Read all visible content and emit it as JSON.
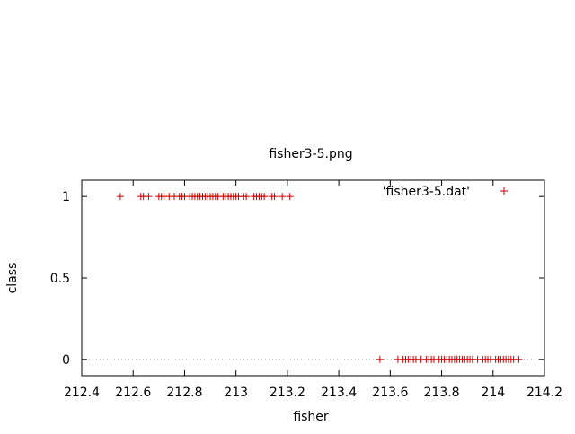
{
  "chart_data": {
    "type": "scatter",
    "title": "fisher3-5.png",
    "xlabel": "fisher",
    "ylabel": "class",
    "xlim": [
      212.4,
      214.2
    ],
    "ylim": [
      -0.1,
      1.1
    ],
    "x_ticks": [
      "212.4",
      "212.6",
      "212.8",
      "213",
      "213.2",
      "213.4",
      "213.6",
      "213.8",
      "214",
      "214.2"
    ],
    "y_ticks": [
      "0",
      "0.5",
      "1"
    ],
    "grid": "dotted zero line",
    "legend_position": "top-right",
    "series": [
      {
        "name": "'fisher3-5.dat'",
        "color": "#cc0000",
        "marker": "plus",
        "points": [
          [
            212.55,
            1
          ],
          [
            212.63,
            1
          ],
          [
            212.64,
            1
          ],
          [
            212.66,
            1
          ],
          [
            212.7,
            1
          ],
          [
            212.71,
            1
          ],
          [
            212.72,
            1
          ],
          [
            212.74,
            1
          ],
          [
            212.76,
            1
          ],
          [
            212.78,
            1
          ],
          [
            212.79,
            1
          ],
          [
            212.8,
            1
          ],
          [
            212.82,
            1
          ],
          [
            212.83,
            1
          ],
          [
            212.84,
            1
          ],
          [
            212.85,
            1
          ],
          [
            212.86,
            1
          ],
          [
            212.87,
            1
          ],
          [
            212.88,
            1
          ],
          [
            212.89,
            1
          ],
          [
            212.9,
            1
          ],
          [
            212.91,
            1
          ],
          [
            212.92,
            1
          ],
          [
            212.93,
            1
          ],
          [
            212.95,
            1
          ],
          [
            212.96,
            1
          ],
          [
            212.97,
            1
          ],
          [
            212.98,
            1
          ],
          [
            212.99,
            1
          ],
          [
            213.0,
            1
          ],
          [
            213.01,
            1
          ],
          [
            213.03,
            1
          ],
          [
            213.04,
            1
          ],
          [
            213.07,
            1
          ],
          [
            213.08,
            1
          ],
          [
            213.09,
            1
          ],
          [
            213.1,
            1
          ],
          [
            213.11,
            1
          ],
          [
            213.14,
            1
          ],
          [
            213.15,
            1
          ],
          [
            213.18,
            1
          ],
          [
            213.21,
            1
          ],
          [
            213.56,
            0
          ],
          [
            213.63,
            0
          ],
          [
            213.65,
            0
          ],
          [
            213.66,
            0
          ],
          [
            213.67,
            0
          ],
          [
            213.68,
            0
          ],
          [
            213.69,
            0
          ],
          [
            213.7,
            0
          ],
          [
            213.72,
            0
          ],
          [
            213.74,
            0
          ],
          [
            213.75,
            0
          ],
          [
            213.76,
            0
          ],
          [
            213.77,
            0
          ],
          [
            213.79,
            0
          ],
          [
            213.8,
            0
          ],
          [
            213.81,
            0
          ],
          [
            213.82,
            0
          ],
          [
            213.83,
            0
          ],
          [
            213.84,
            0
          ],
          [
            213.85,
            0
          ],
          [
            213.86,
            0
          ],
          [
            213.87,
            0
          ],
          [
            213.88,
            0
          ],
          [
            213.89,
            0
          ],
          [
            213.9,
            0
          ],
          [
            213.91,
            0
          ],
          [
            213.92,
            0
          ],
          [
            213.94,
            0
          ],
          [
            213.96,
            0
          ],
          [
            213.97,
            0
          ],
          [
            213.98,
            0
          ],
          [
            213.99,
            0
          ],
          [
            214.01,
            0
          ],
          [
            214.02,
            0
          ],
          [
            214.03,
            0
          ],
          [
            214.04,
            0
          ],
          [
            214.05,
            0
          ],
          [
            214.06,
            0
          ],
          [
            214.07,
            0
          ],
          [
            214.08,
            0
          ],
          [
            214.1,
            0
          ]
        ]
      }
    ]
  }
}
